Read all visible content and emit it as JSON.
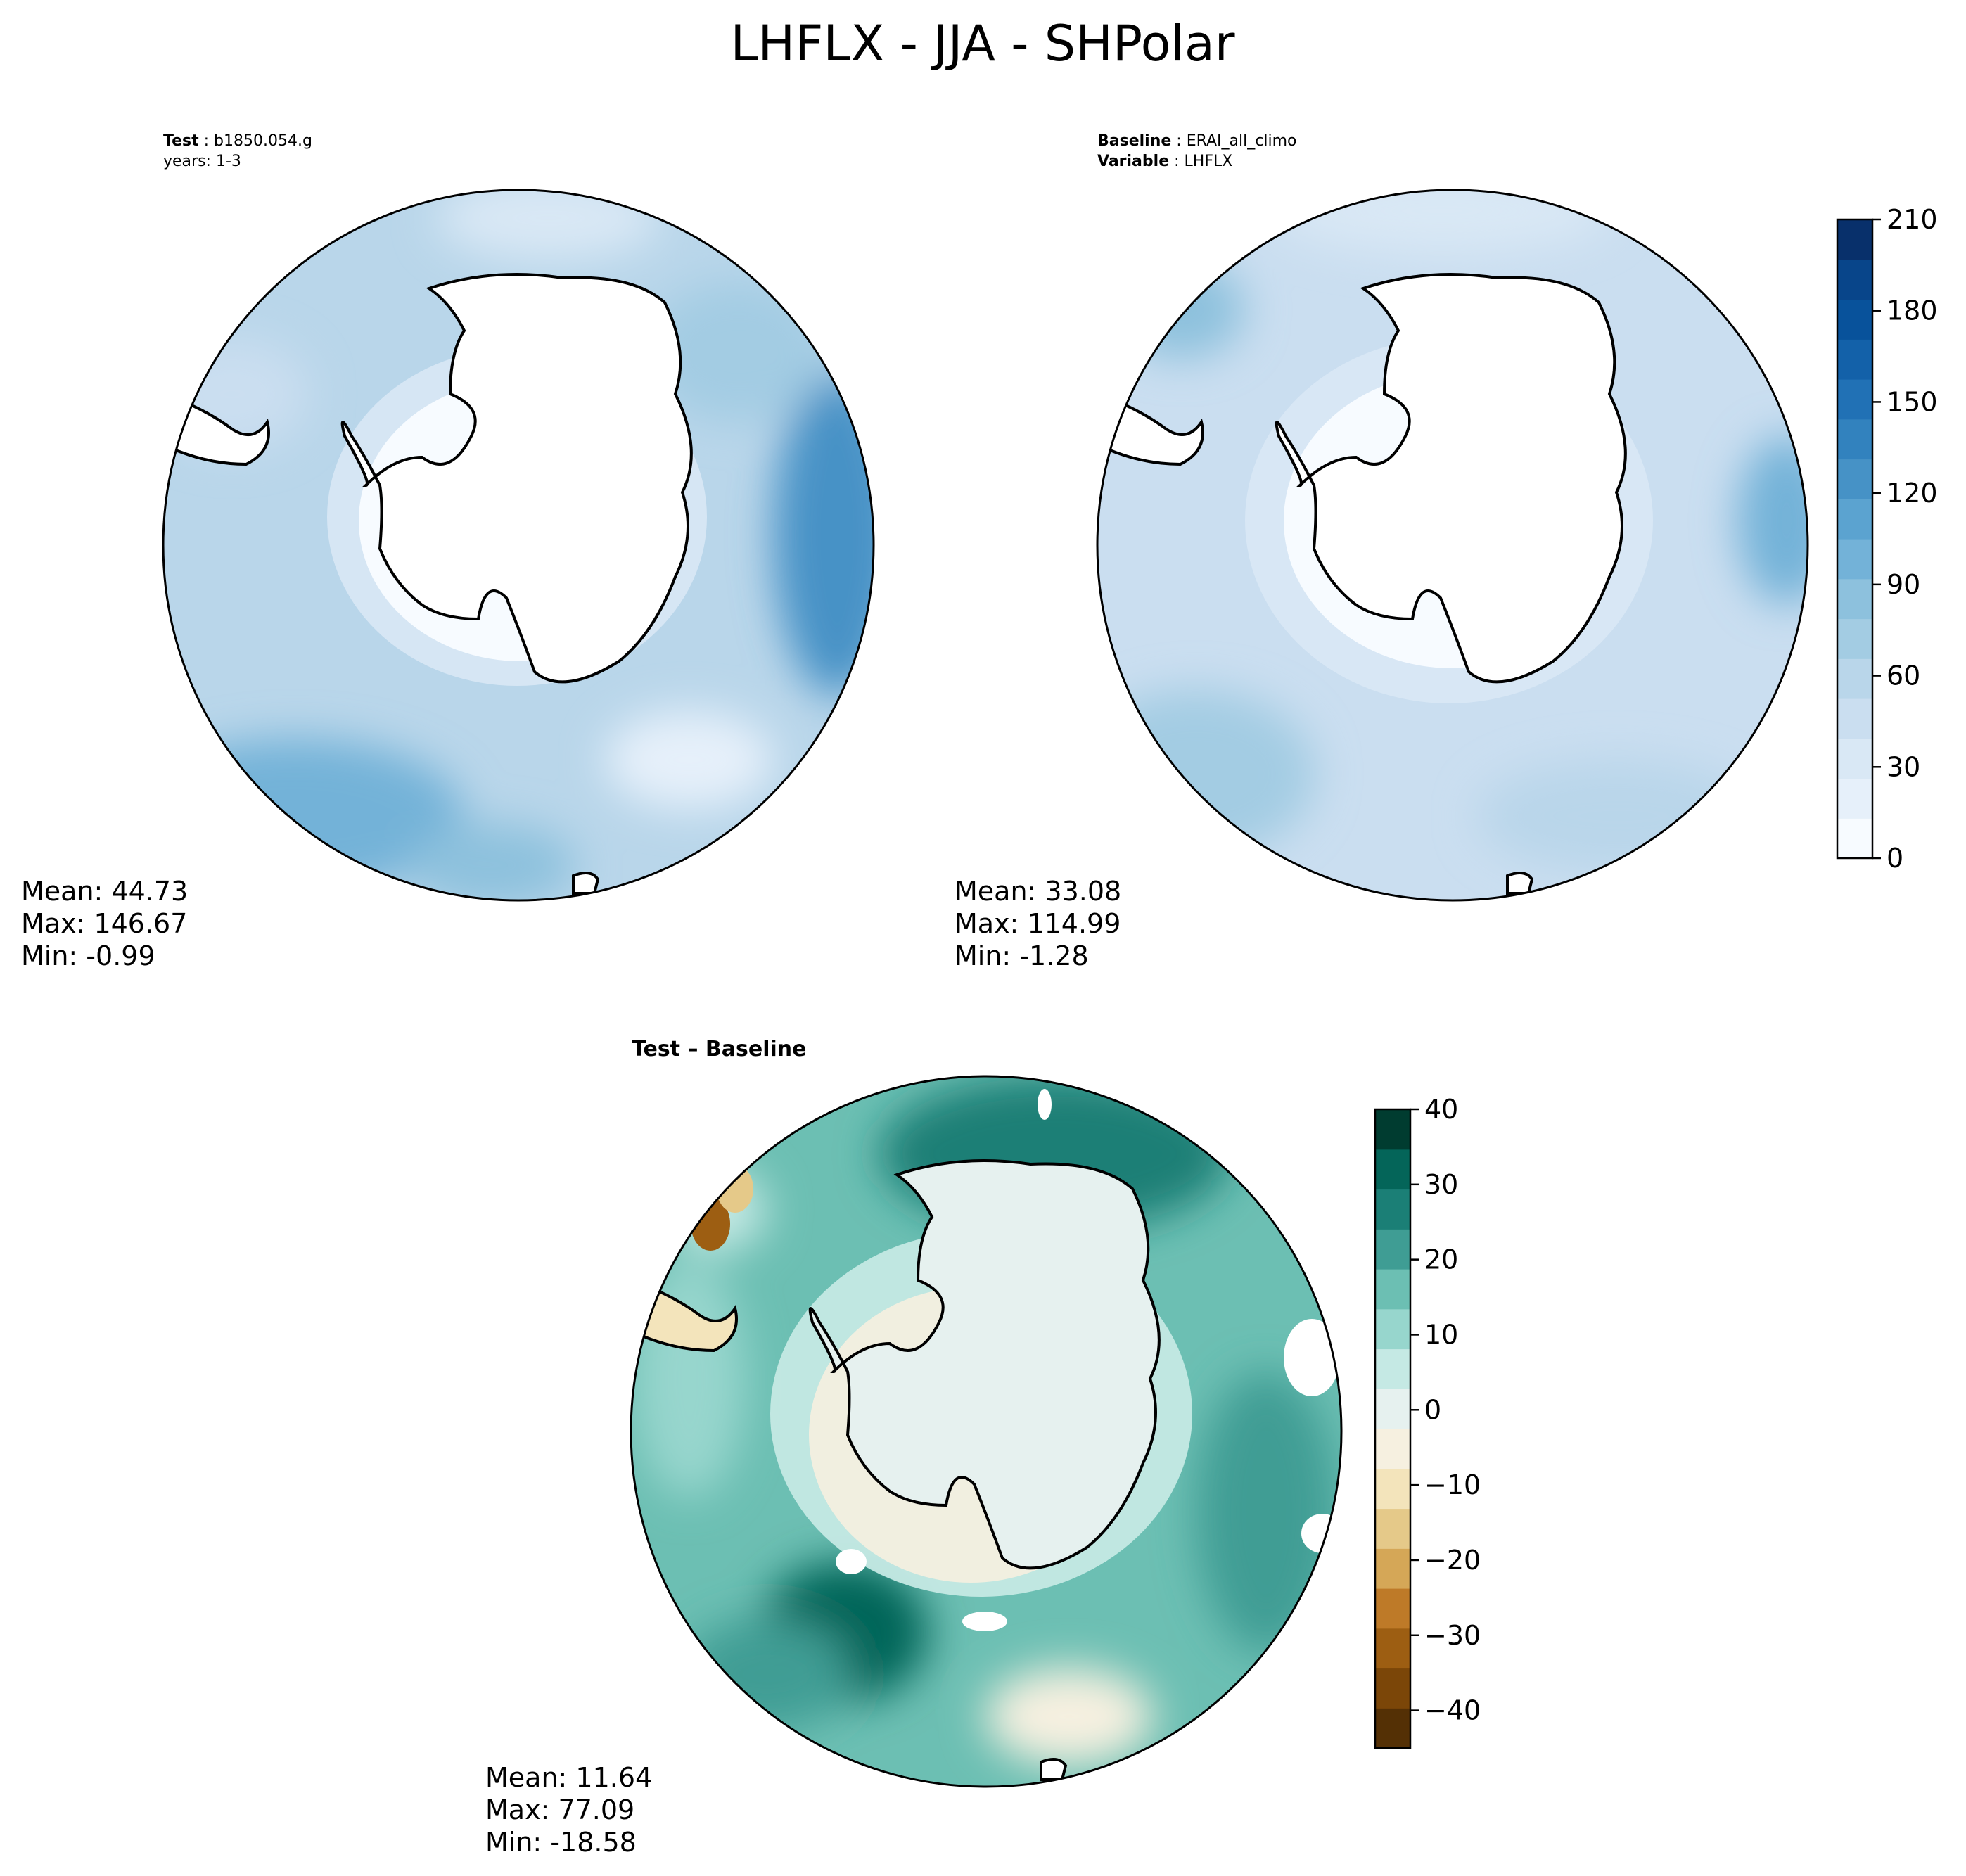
{
  "figure": {
    "title": "LHFLX - JJA - SHPolar"
  },
  "panels": [
    {
      "id": "test",
      "header_bold": "Test",
      "header_value": "b1850.054.g",
      "header_line2": "years: 1-3",
      "stats": {
        "mean": "Mean: 44.73",
        "max": "Max: 146.67",
        "min": "Min: -0.99"
      }
    },
    {
      "id": "baseline",
      "header_bold": "Baseline",
      "header_value": "ERAI_all_climo",
      "header2_bold": "Variable",
      "header2_value": "LHFLX",
      "stats": {
        "mean": "Mean: 33.08",
        "max": "Max: 114.99",
        "min": "Min: -1.28"
      }
    },
    {
      "id": "diff",
      "header_bold": "Test – Baseline",
      "stats": {
        "mean": "Mean: 11.64",
        "max": "Max: 77.09",
        "min": "Min: -18.58"
      }
    }
  ],
  "chart_data": [
    {
      "type": "heatmap",
      "projection": "south-polar-stereographic",
      "panel": "test",
      "colormap": "Blues",
      "colorbar": {
        "min": 0,
        "max": 210,
        "ticks": [
          "0",
          "30",
          "60",
          "90",
          "120",
          "150",
          "180",
          "210"
        ]
      },
      "values": {
        "mean": 44.73,
        "max": 146.67,
        "min": -0.99
      }
    },
    {
      "type": "heatmap",
      "projection": "south-polar-stereographic",
      "panel": "baseline",
      "colormap": "Blues",
      "values": {
        "mean": 33.08,
        "max": 114.99,
        "min": -1.28
      }
    },
    {
      "type": "heatmap",
      "projection": "south-polar-stereographic",
      "panel": "diff",
      "colormap": "BrBG",
      "colorbar": {
        "min": -45,
        "max": 40,
        "ticks": [
          "−40",
          "−30",
          "−20",
          "−10",
          "0",
          "10",
          "20",
          "30",
          "40"
        ]
      },
      "values": {
        "mean": 11.64,
        "max": 77.09,
        "min": -18.58
      }
    }
  ],
  "colors": {
    "blues": [
      "#f7fbff",
      "#e6f0fa",
      "#d9e8f5",
      "#cadef0",
      "#b9d6ea",
      "#a3cce3",
      "#8dc1dd",
      "#73b2d8",
      "#5ba3d0",
      "#4692c6",
      "#3282be",
      "#2171b5",
      "#1361a9",
      "#08529b",
      "#08458a",
      "#08306b"
    ],
    "brbg": [
      "#543005",
      "#7b4608",
      "#9d5e12",
      "#be7a28",
      "#d5a757",
      "#e5c989",
      "#f3e4bb",
      "#f6f0e0",
      "#e6f1ef",
      "#c5e9e4",
      "#97d6cd",
      "#6cbfb3",
      "#3f9d94",
      "#1b7f76",
      "#046559",
      "#003c30"
    ]
  }
}
